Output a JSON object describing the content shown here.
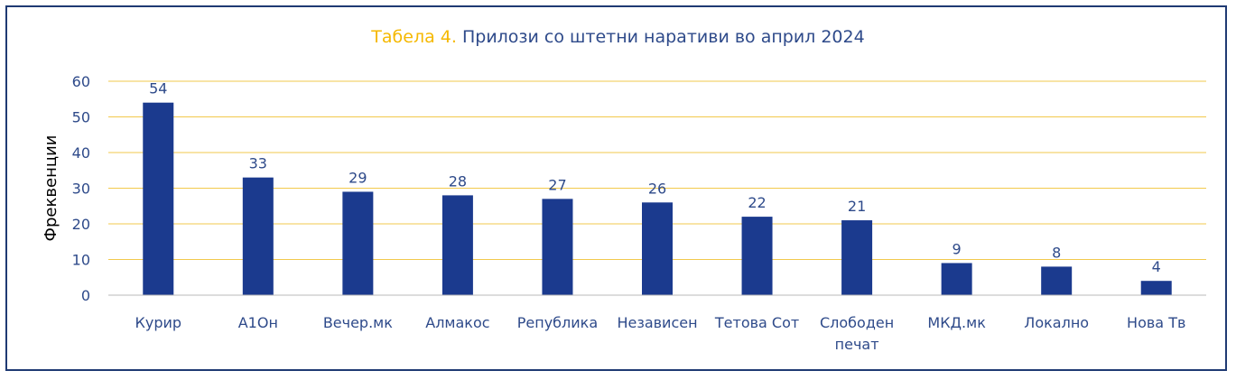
{
  "chart_data": {
    "type": "bar",
    "title_prefix": "Табела 4.",
    "title": "Прилози со штетни наративи во април 2024",
    "xlabel": "",
    "ylabel": "Фреквенции",
    "ylim": [
      0,
      60
    ],
    "yticks": [
      "0",
      "10",
      "20",
      "30",
      "40",
      "50",
      "60"
    ],
    "grid": true,
    "categories": [
      [
        "Курир"
      ],
      [
        "А1Он"
      ],
      [
        "Вечер.мк"
      ],
      [
        "Алмакос"
      ],
      [
        "Република"
      ],
      [
        "Независен"
      ],
      [
        "Тетова Сот"
      ],
      [
        "Слободен",
        "печат"
      ],
      [
        "МКД.мк"
      ],
      [
        "Локално"
      ],
      [
        "Нова Тв"
      ]
    ],
    "values": [
      54,
      33,
      29,
      28,
      27,
      26,
      22,
      21,
      9,
      8,
      4
    ],
    "data_labels": [
      "54",
      "33",
      "29",
      "28",
      "27",
      "26",
      "22",
      "21",
      "9",
      "8",
      "4"
    ],
    "colors": {
      "bar": "#1b3a8e",
      "grid": "#f2c94c",
      "title_prefix": "#f5b800",
      "text": "#2e4a8a",
      "frame": "#1f3a73"
    }
  }
}
